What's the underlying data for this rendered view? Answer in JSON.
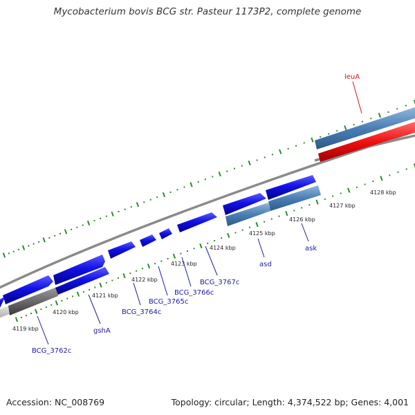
{
  "title": "Mycobacterium bovis BCG str. Pasteur 1173P2, complete genome",
  "footer": {
    "accession": "Accession: NC_008769",
    "stats": "Topology: circular; Length: 4,374,522 bp; Genes: 4,001"
  },
  "colors": {
    "gene_blue": "#1212e8",
    "feature_steel": "#4a7fb5",
    "feature_red": "#f01010",
    "backbone": "#808080",
    "tick_green": "#2a8a2a",
    "label_blue": "#1a1aa8",
    "label_red": "#e01010"
  },
  "kbp_ticks": [
    {
      "label": "4119 kbp",
      "position_kbp": 4119
    },
    {
      "label": "4120 kbp",
      "position_kbp": 4120
    },
    {
      "label": "4121 kbp",
      "position_kbp": 4121
    },
    {
      "label": "4122 kbp",
      "position_kbp": 4122
    },
    {
      "label": "4123 kbp",
      "position_kbp": 4123
    },
    {
      "label": "4124 kbp",
      "position_kbp": 4124
    },
    {
      "label": "4125 kbp",
      "position_kbp": 4125
    },
    {
      "label": "4126 kbp",
      "position_kbp": 4126
    },
    {
      "label": "4127 kbp",
      "position_kbp": 4127
    },
    {
      "label": "4128 kbp",
      "position_kbp": 4128
    }
  ],
  "gene_labels": [
    {
      "name": "leuA",
      "color": "red"
    },
    {
      "name": "BCG_3762c",
      "color": "blue"
    },
    {
      "name": "gshA",
      "color": "blue"
    },
    {
      "name": "BCG_3764c",
      "color": "blue"
    },
    {
      "name": "BCG_3765c",
      "color": "blue"
    },
    {
      "name": "BCG_3766c",
      "color": "blue"
    },
    {
      "name": "BCG_3767c",
      "color": "blue"
    },
    {
      "name": "asd",
      "color": "blue"
    },
    {
      "name": "ask",
      "color": "blue"
    }
  ]
}
